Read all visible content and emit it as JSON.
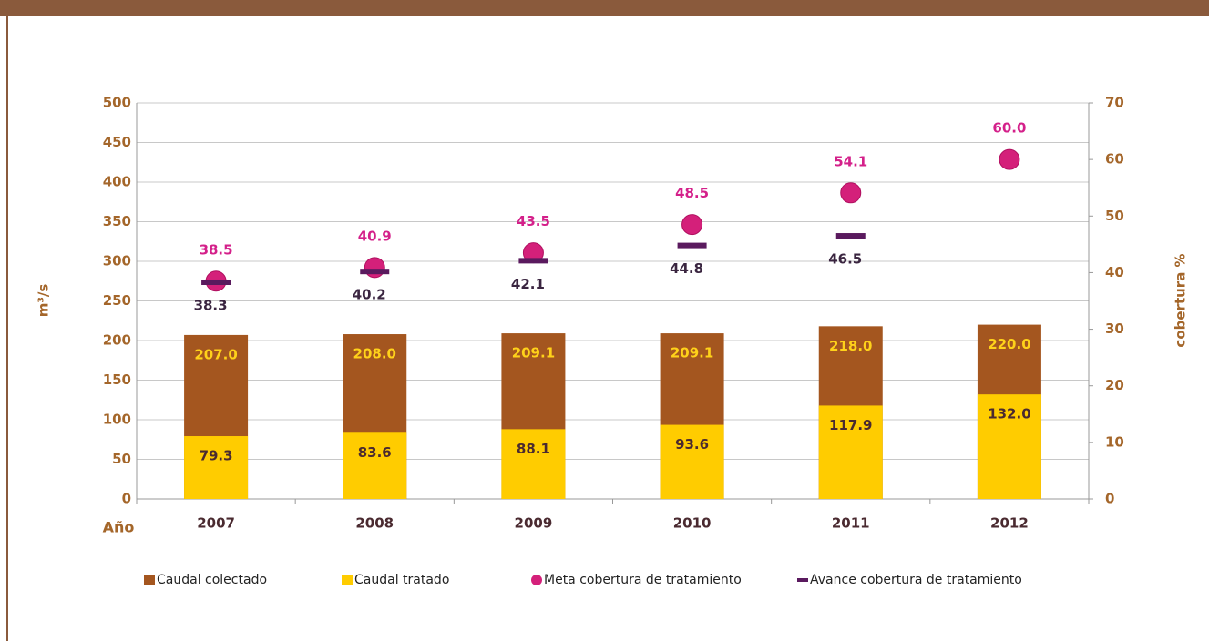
{
  "chart_data": {
    "type": "bar",
    "categories": [
      "2007",
      "2008",
      "2009",
      "2010",
      "2011",
      "2012"
    ],
    "x_label": "Año",
    "y_label": "m³/s",
    "y2_label": "cobertura %",
    "ylim": [
      0,
      500
    ],
    "yticks": [
      0,
      50,
      100,
      150,
      200,
      250,
      300,
      350,
      400,
      450,
      500
    ],
    "y2lim": [
      0,
      70
    ],
    "y2ticks": [
      0,
      10,
      20,
      30,
      40,
      50,
      60,
      70
    ],
    "grid": true,
    "legend": "bottom",
    "series": [
      {
        "name": "Caudal colectado",
        "color": "#a4561f",
        "marker": "bar",
        "label_color": "#ffd21a",
        "values": [
          207,
          208,
          209.1,
          209.1,
          218,
          220
        ],
        "value_labels": [
          "207.0",
          "208.0",
          "209.1",
          "209.1",
          "218.0",
          "220.0"
        ]
      },
      {
        "name": "Caudal tratado",
        "color": "#ffcc00",
        "marker": "bar",
        "label_color": "#4a2a30",
        "values": [
          79.3,
          83.6,
          88.1,
          93.6,
          117.9,
          132
        ],
        "value_labels": [
          "79.3",
          "83.6",
          "88.1",
          "93.6",
          "117.9",
          "132.0"
        ]
      },
      {
        "name": "Meta cobertura de tratamiento",
        "color": "#d4207a",
        "marker": "circle",
        "axis": "y2",
        "label_color": "#d4208a",
        "values": [
          38.5,
          40.9,
          43.5,
          48.5,
          54.1,
          60
        ],
        "value_labels": [
          "38.5",
          "40.9",
          "43.5",
          "48.5",
          "54.1",
          "60.0"
        ]
      },
      {
        "name": "Avance cobertura de tratamiento",
        "color": "#5a1a5e",
        "marker": "dash",
        "axis": "y2",
        "label_color": "#3a2540",
        "values": [
          38.3,
          40.2,
          42.1,
          44.8,
          46.5,
          null
        ],
        "value_labels": [
          "38.3",
          "40.2",
          "42.1",
          "44.8",
          "46.5",
          null
        ]
      }
    ]
  }
}
